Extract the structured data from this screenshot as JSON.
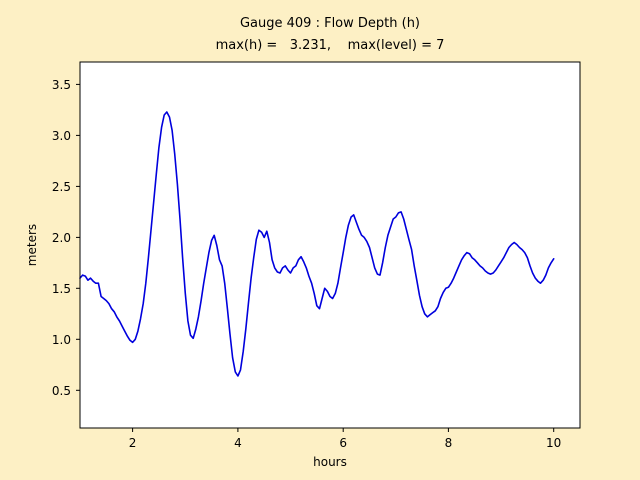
{
  "figure": {
    "bg_color": "#FDF0C5",
    "plot_bg_color": "#FFFFFF",
    "axes_border_color": "#000000"
  },
  "chart_data": {
    "type": "line",
    "title": "Gauge 409 : Flow Depth (h)",
    "subtitle": "max(h) =   3.231,    max(level) = 7",
    "xlabel": "hours",
    "ylabel": "meters",
    "xlim": [
      1.0,
      10.5
    ],
    "ylim": [
      0.13,
      3.72
    ],
    "xticks": [
      2,
      4,
      6,
      8,
      10
    ],
    "xticklabels": [
      "2",
      "4",
      "6",
      "8",
      "10"
    ],
    "yticks": [
      0.5,
      1.0,
      1.5,
      2.0,
      2.5,
      3.0,
      3.5
    ],
    "yticklabels": [
      "0.5",
      "1.0",
      "1.5",
      "2.0",
      "2.5",
      "3.0",
      "3.5"
    ],
    "grid": false,
    "legend": null,
    "max_h": 3.231,
    "max_level": 7,
    "series": [
      {
        "name": "Flow Depth (h)",
        "color": "#0000DD",
        "points": [
          [
            1.0,
            1.6
          ],
          [
            1.05,
            1.63
          ],
          [
            1.1,
            1.62
          ],
          [
            1.15,
            1.58
          ],
          [
            1.2,
            1.6
          ],
          [
            1.25,
            1.57
          ],
          [
            1.3,
            1.55
          ],
          [
            1.35,
            1.55
          ],
          [
            1.4,
            1.42
          ],
          [
            1.45,
            1.4
          ],
          [
            1.5,
            1.38
          ],
          [
            1.55,
            1.35
          ],
          [
            1.6,
            1.3
          ],
          [
            1.65,
            1.27
          ],
          [
            1.7,
            1.22
          ],
          [
            1.75,
            1.18
          ],
          [
            1.8,
            1.13
          ],
          [
            1.85,
            1.08
          ],
          [
            1.9,
            1.03
          ],
          [
            1.95,
            0.99
          ],
          [
            2.0,
            0.97
          ],
          [
            2.05,
            1.0
          ],
          [
            2.1,
            1.08
          ],
          [
            2.15,
            1.2
          ],
          [
            2.2,
            1.35
          ],
          [
            2.25,
            1.55
          ],
          [
            2.3,
            1.8
          ],
          [
            2.35,
            2.08
          ],
          [
            2.4,
            2.35
          ],
          [
            2.45,
            2.62
          ],
          [
            2.5,
            2.88
          ],
          [
            2.55,
            3.08
          ],
          [
            2.6,
            3.2
          ],
          [
            2.65,
            3.23
          ],
          [
            2.7,
            3.18
          ],
          [
            2.75,
            3.05
          ],
          [
            2.8,
            2.82
          ],
          [
            2.85,
            2.52
          ],
          [
            2.9,
            2.18
          ],
          [
            2.95,
            1.8
          ],
          [
            3.0,
            1.45
          ],
          [
            3.05,
            1.18
          ],
          [
            3.1,
            1.04
          ],
          [
            3.15,
            1.01
          ],
          [
            3.2,
            1.1
          ],
          [
            3.25,
            1.22
          ],
          [
            3.3,
            1.38
          ],
          [
            3.35,
            1.55
          ],
          [
            3.4,
            1.7
          ],
          [
            3.45,
            1.85
          ],
          [
            3.5,
            1.97
          ],
          [
            3.55,
            2.02
          ],
          [
            3.6,
            1.92
          ],
          [
            3.65,
            1.78
          ],
          [
            3.7,
            1.72
          ],
          [
            3.75,
            1.55
          ],
          [
            3.8,
            1.3
          ],
          [
            3.85,
            1.05
          ],
          [
            3.9,
            0.82
          ],
          [
            3.95,
            0.68
          ],
          [
            4.0,
            0.64
          ],
          [
            4.05,
            0.7
          ],
          [
            4.1,
            0.88
          ],
          [
            4.15,
            1.1
          ],
          [
            4.2,
            1.35
          ],
          [
            4.25,
            1.6
          ],
          [
            4.3,
            1.8
          ],
          [
            4.35,
            1.98
          ],
          [
            4.4,
            2.07
          ],
          [
            4.45,
            2.05
          ],
          [
            4.5,
            2.0
          ],
          [
            4.55,
            2.06
          ],
          [
            4.6,
            1.95
          ],
          [
            4.65,
            1.78
          ],
          [
            4.7,
            1.7
          ],
          [
            4.75,
            1.66
          ],
          [
            4.8,
            1.65
          ],
          [
            4.85,
            1.7
          ],
          [
            4.9,
            1.72
          ],
          [
            4.95,
            1.68
          ],
          [
            5.0,
            1.65
          ],
          [
            5.05,
            1.7
          ],
          [
            5.1,
            1.72
          ],
          [
            5.15,
            1.78
          ],
          [
            5.2,
            1.81
          ],
          [
            5.25,
            1.76
          ],
          [
            5.3,
            1.7
          ],
          [
            5.35,
            1.62
          ],
          [
            5.4,
            1.55
          ],
          [
            5.45,
            1.45
          ],
          [
            5.5,
            1.33
          ],
          [
            5.55,
            1.3
          ],
          [
            5.6,
            1.4
          ],
          [
            5.65,
            1.5
          ],
          [
            5.7,
            1.47
          ],
          [
            5.75,
            1.42
          ],
          [
            5.8,
            1.4
          ],
          [
            5.85,
            1.45
          ],
          [
            5.9,
            1.55
          ],
          [
            5.95,
            1.7
          ],
          [
            6.0,
            1.85
          ],
          [
            6.05,
            2.0
          ],
          [
            6.1,
            2.12
          ],
          [
            6.15,
            2.2
          ],
          [
            6.2,
            2.22
          ],
          [
            6.25,
            2.15
          ],
          [
            6.3,
            2.08
          ],
          [
            6.35,
            2.02
          ],
          [
            6.4,
            2.0
          ],
          [
            6.45,
            1.96
          ],
          [
            6.5,
            1.9
          ],
          [
            6.55,
            1.8
          ],
          [
            6.6,
            1.7
          ],
          [
            6.65,
            1.64
          ],
          [
            6.7,
            1.63
          ],
          [
            6.75,
            1.75
          ],
          [
            6.8,
            1.9
          ],
          [
            6.85,
            2.02
          ],
          [
            6.9,
            2.1
          ],
          [
            6.95,
            2.18
          ],
          [
            7.0,
            2.2
          ],
          [
            7.05,
            2.24
          ],
          [
            7.1,
            2.25
          ],
          [
            7.15,
            2.18
          ],
          [
            7.2,
            2.08
          ],
          [
            7.25,
            1.98
          ],
          [
            7.3,
            1.88
          ],
          [
            7.35,
            1.72
          ],
          [
            7.4,
            1.58
          ],
          [
            7.45,
            1.43
          ],
          [
            7.5,
            1.32
          ],
          [
            7.55,
            1.25
          ],
          [
            7.6,
            1.22
          ],
          [
            7.65,
            1.24
          ],
          [
            7.7,
            1.26
          ],
          [
            7.75,
            1.28
          ],
          [
            7.8,
            1.32
          ],
          [
            7.85,
            1.4
          ],
          [
            7.9,
            1.46
          ],
          [
            7.95,
            1.5
          ],
          [
            8.0,
            1.51
          ],
          [
            8.05,
            1.55
          ],
          [
            8.1,
            1.6
          ],
          [
            8.15,
            1.66
          ],
          [
            8.2,
            1.72
          ],
          [
            8.25,
            1.78
          ],
          [
            8.3,
            1.82
          ],
          [
            8.35,
            1.85
          ],
          [
            8.4,
            1.84
          ],
          [
            8.45,
            1.8
          ],
          [
            8.5,
            1.78
          ],
          [
            8.55,
            1.75
          ],
          [
            8.6,
            1.72
          ],
          [
            8.65,
            1.7
          ],
          [
            8.7,
            1.67
          ],
          [
            8.75,
            1.65
          ],
          [
            8.8,
            1.64
          ],
          [
            8.85,
            1.65
          ],
          [
            8.9,
            1.68
          ],
          [
            8.95,
            1.72
          ],
          [
            9.0,
            1.76
          ],
          [
            9.05,
            1.8
          ],
          [
            9.1,
            1.85
          ],
          [
            9.15,
            1.9
          ],
          [
            9.2,
            1.93
          ],
          [
            9.25,
            1.95
          ],
          [
            9.3,
            1.93
          ],
          [
            9.35,
            1.9
          ],
          [
            9.4,
            1.88
          ],
          [
            9.45,
            1.85
          ],
          [
            9.5,
            1.8
          ],
          [
            9.55,
            1.72
          ],
          [
            9.6,
            1.65
          ],
          [
            9.65,
            1.6
          ],
          [
            9.7,
            1.57
          ],
          [
            9.75,
            1.55
          ],
          [
            9.8,
            1.58
          ],
          [
            9.85,
            1.63
          ],
          [
            9.9,
            1.7
          ],
          [
            9.95,
            1.75
          ],
          [
            10.0,
            1.79
          ]
        ]
      }
    ]
  }
}
